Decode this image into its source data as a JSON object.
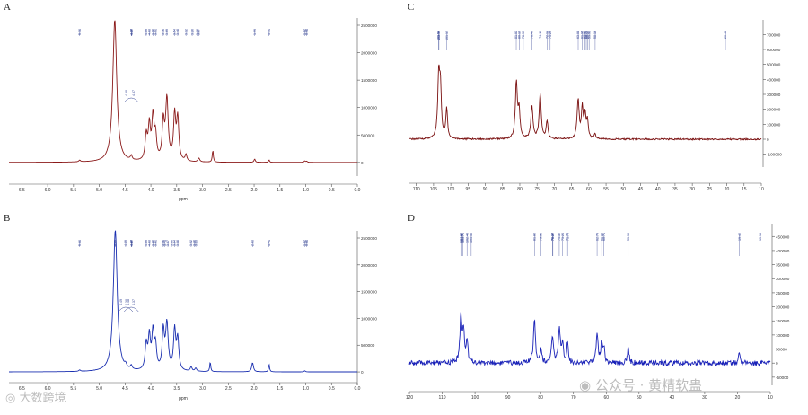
{
  "chart_data": [
    {
      "panel_label": "A",
      "type": "line",
      "xlabel": "ppm",
      "color": "#8b1a1a",
      "x_ticks": [
        "6.5",
        "6.0",
        "5.5",
        "5.0",
        "4.5",
        "4.0",
        "3.5",
        "3.0",
        "2.5",
        "2.0",
        "1.5",
        "1.0",
        "0.5",
        "0.0"
      ],
      "y_ticks": [
        "2500000",
        "2000000",
        "1500000",
        "1000000",
        "500000",
        "0"
      ],
      "xlim": [
        6.75,
        0.0
      ],
      "ylim": [
        -150000,
        2500000
      ],
      "peak_labels": [
        "5.38",
        "4.38",
        "4.37",
        "4.09",
        "4.03",
        "3.96",
        "3.91",
        "3.76",
        "3.69",
        "3.54",
        "3.48",
        "3.32",
        "3.20",
        "3.10",
        "3.07",
        "1.99",
        "1.71",
        "1.02",
        "0.98"
      ],
      "sub_peak_labels": [
        "4.38",
        "4.37"
      ],
      "peaks": [
        {
          "x": 5.38,
          "y": 30000,
          "w": 0.02
        },
        {
          "x": 4.7,
          "y": 2600000,
          "w": 0.045
        },
        {
          "x": 4.38,
          "y": 80000,
          "w": 0.02
        },
        {
          "x": 4.09,
          "y": 450000,
          "w": 0.025
        },
        {
          "x": 4.03,
          "y": 620000,
          "w": 0.025
        },
        {
          "x": 3.96,
          "y": 780000,
          "w": 0.025
        },
        {
          "x": 3.91,
          "y": 420000,
          "w": 0.025
        },
        {
          "x": 3.76,
          "y": 680000,
          "w": 0.025
        },
        {
          "x": 3.69,
          "y": 1120000,
          "w": 0.03
        },
        {
          "x": 3.54,
          "y": 820000,
          "w": 0.025
        },
        {
          "x": 3.48,
          "y": 760000,
          "w": 0.025
        },
        {
          "x": 3.32,
          "y": 120000,
          "w": 0.02
        },
        {
          "x": 3.07,
          "y": 70000,
          "w": 0.02
        },
        {
          "x": 2.8,
          "y": 220000,
          "w": 0.012
        },
        {
          "x": 1.99,
          "y": 60000,
          "w": 0.015
        },
        {
          "x": 1.71,
          "y": 45000,
          "w": 0.012
        },
        {
          "x": 1.02,
          "y": 25000,
          "w": 0.015
        },
        {
          "x": 0.98,
          "y": 20000,
          "w": 0.015
        }
      ]
    },
    {
      "panel_label": "B",
      "type": "line",
      "xlabel": "ppm",
      "color": "#1a2fb0",
      "x_ticks": [
        "6.5",
        "6.0",
        "5.5",
        "5.0",
        "4.5",
        "4.0",
        "3.5",
        "3.0",
        "2.5",
        "2.0",
        "1.5",
        "1.0",
        "0.5",
        "0.0"
      ],
      "y_ticks": [
        "2500000",
        "2000000",
        "1500000",
        "1000000",
        "500000",
        "0"
      ],
      "xlim": [
        6.75,
        0.0
      ],
      "ylim": [
        -150000,
        2500000
      ],
      "peak_labels": [
        "5.38",
        "4.69",
        "4.49",
        "4.38",
        "4.37",
        "4.09",
        "4.03",
        "3.96",
        "3.91",
        "3.76",
        "3.73",
        "3.67",
        "3.60",
        "3.54",
        "3.48",
        "3.22",
        "3.13",
        "3.16",
        "2.03",
        "1.71",
        "1.02",
        "0.98"
      ],
      "sub_peak_labels": [
        "4.49",
        "4.48",
        "4.38",
        "4.37"
      ],
      "peaks": [
        {
          "x": 5.38,
          "y": 25000,
          "w": 0.02
        },
        {
          "x": 4.69,
          "y": 2650000,
          "w": 0.045
        },
        {
          "x": 4.49,
          "y": 60000,
          "w": 0.02
        },
        {
          "x": 4.38,
          "y": 70000,
          "w": 0.02
        },
        {
          "x": 4.09,
          "y": 470000,
          "w": 0.025
        },
        {
          "x": 4.03,
          "y": 610000,
          "w": 0.025
        },
        {
          "x": 3.96,
          "y": 690000,
          "w": 0.025
        },
        {
          "x": 3.91,
          "y": 420000,
          "w": 0.025
        },
        {
          "x": 3.76,
          "y": 720000,
          "w": 0.025
        },
        {
          "x": 3.69,
          "y": 860000,
          "w": 0.03
        },
        {
          "x": 3.54,
          "y": 750000,
          "w": 0.025
        },
        {
          "x": 3.48,
          "y": 580000,
          "w": 0.025
        },
        {
          "x": 3.22,
          "y": 80000,
          "w": 0.02
        },
        {
          "x": 3.13,
          "y": 60000,
          "w": 0.02
        },
        {
          "x": 2.85,
          "y": 180000,
          "w": 0.012
        },
        {
          "x": 2.03,
          "y": 170000,
          "w": 0.02
        },
        {
          "x": 1.71,
          "y": 140000,
          "w": 0.012
        },
        {
          "x": 1.02,
          "y": 20000,
          "w": 0.015
        }
      ]
    },
    {
      "panel_label": "C",
      "type": "line",
      "color": "#7a1010",
      "x_ticks": [
        "110",
        "105",
        "100",
        "95",
        "90",
        "85",
        "80",
        "75",
        "70",
        "65",
        "60",
        "55",
        "50",
        "45",
        "40",
        "35",
        "30",
        "25",
        "20",
        "15",
        "10"
      ],
      "y_ticks": [
        "700000",
        "600000",
        "500000",
        "400000",
        "300000",
        "200000",
        "100000",
        "0",
        "-100000"
      ],
      "xlim": [
        112,
        10
      ],
      "ylim": [
        -150000,
        750000
      ],
      "peak_labels": [
        "103.56",
        "103.44",
        "101.17",
        "81.03",
        "80.19",
        "78.99",
        "76.47",
        "74.11",
        "72.12",
        "71.20",
        "63.08",
        "61.95",
        "61.13",
        "60.74",
        "60.39",
        "59.91",
        "58.16",
        "20.40"
      ],
      "peaks": [
        {
          "x": 103.5,
          "y": 420000,
          "w": 0.35
        },
        {
          "x": 103.0,
          "y": 300000,
          "w": 0.3
        },
        {
          "x": 101.2,
          "y": 200000,
          "w": 0.3
        },
        {
          "x": 81.0,
          "y": 380000,
          "w": 0.35
        },
        {
          "x": 80.2,
          "y": 180000,
          "w": 0.3
        },
        {
          "x": 76.5,
          "y": 220000,
          "w": 0.35
        },
        {
          "x": 74.1,
          "y": 300000,
          "w": 0.35
        },
        {
          "x": 72.1,
          "y": 120000,
          "w": 0.3
        },
        {
          "x": 63.1,
          "y": 260000,
          "w": 0.35
        },
        {
          "x": 61.9,
          "y": 200000,
          "w": 0.3
        },
        {
          "x": 61.1,
          "y": 150000,
          "w": 0.3
        },
        {
          "x": 60.4,
          "y": 120000,
          "w": 0.3
        },
        {
          "x": 58.2,
          "y": 30000,
          "w": 0.3
        }
      ]
    },
    {
      "panel_label": "D",
      "type": "line",
      "color": "#1a22b8",
      "x_ticks": [
        "120",
        "110",
        "100",
        "90",
        "80",
        "70",
        "60",
        "50",
        "40",
        "30",
        "20",
        "10"
      ],
      "y_ticks": [
        "450000",
        "400000",
        "350000",
        "300000",
        "250000",
        "200000",
        "150000",
        "100000",
        "50000",
        "0",
        "-50000"
      ],
      "xlim": [
        120,
        10
      ],
      "ylim": [
        -60000,
        470000
      ],
      "peak_labels": [
        "104.34",
        "103.97",
        "103.70",
        "102.43",
        "101.16",
        "81.86",
        "79.90",
        "76.38",
        "76.27",
        "74.32",
        "73.28",
        "71.79",
        "62.79",
        "61.39",
        "60.71",
        "53.30",
        "19.42",
        "13.13"
      ],
      "peaks": [
        {
          "x": 104.3,
          "y": 170000,
          "w": 0.35
        },
        {
          "x": 103.5,
          "y": 110000,
          "w": 0.3
        },
        {
          "x": 102.4,
          "y": 80000,
          "w": 0.3
        },
        {
          "x": 81.9,
          "y": 160000,
          "w": 0.35
        },
        {
          "x": 79.9,
          "y": 50000,
          "w": 0.3
        },
        {
          "x": 76.4,
          "y": 90000,
          "w": 0.35
        },
        {
          "x": 74.3,
          "y": 120000,
          "w": 0.35
        },
        {
          "x": 73.3,
          "y": 60000,
          "w": 0.3
        },
        {
          "x": 71.8,
          "y": 70000,
          "w": 0.3
        },
        {
          "x": 62.8,
          "y": 110000,
          "w": 0.35
        },
        {
          "x": 61.4,
          "y": 70000,
          "w": 0.3
        },
        {
          "x": 60.7,
          "y": 50000,
          "w": 0.3
        },
        {
          "x": 53.3,
          "y": 55000,
          "w": 0.3
        },
        {
          "x": 19.4,
          "y": 40000,
          "w": 0.3
        }
      ]
    }
  ],
  "watermarks": {
    "left": "大数跨境",
    "right": "公众号 · 黄精软蛊"
  }
}
